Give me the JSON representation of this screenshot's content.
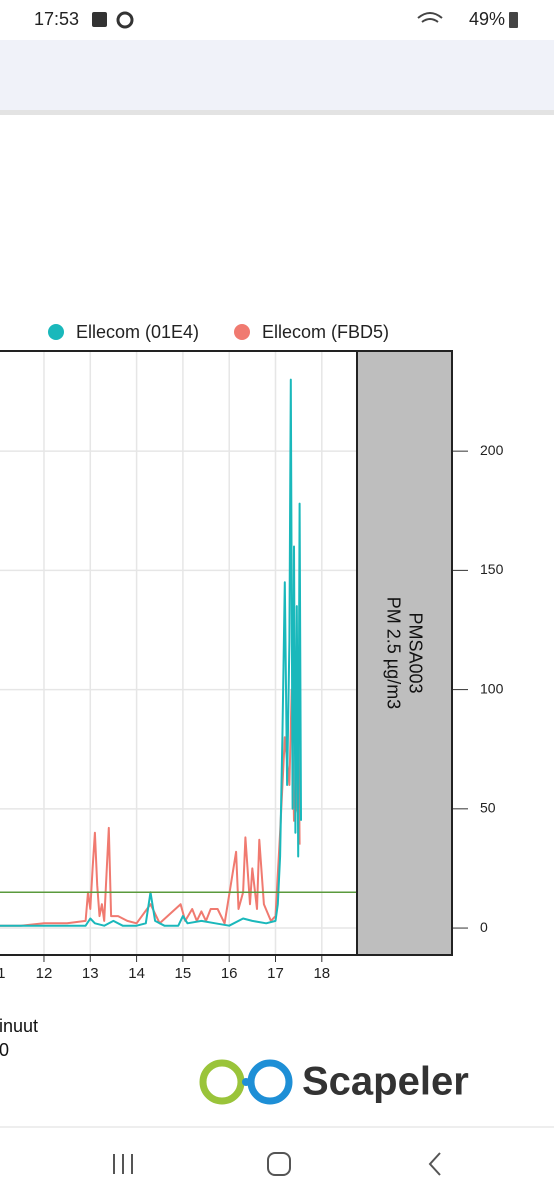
{
  "status_bar": {
    "time": "17:53",
    "battery": "49%"
  },
  "chart_data": {
    "type": "line",
    "legend": {
      "position": "top"
    },
    "strip_labels": [
      "PMSA003",
      "PM 2.5 µg/m3"
    ],
    "x_axis_fragments": [
      "inuut",
      "0"
    ],
    "xlim": [
      10.8,
      18.76
    ],
    "xticks": [
      11,
      12,
      13,
      14,
      15,
      16,
      17,
      18
    ],
    "ylim": [
      -11.3,
      242
    ],
    "yticks": [
      0,
      50,
      100,
      150,
      200
    ],
    "grid": true,
    "reference_line": {
      "value": 15,
      "color": "#5a9a3c"
    },
    "series": [
      {
        "name": "Ellecom (01E4)",
        "color": "#1ab8bb",
        "x": [
          11.0,
          11.5,
          12.0,
          12.5,
          12.9,
          13.0,
          13.1,
          13.3,
          13.5,
          13.7,
          14.0,
          14.2,
          14.3,
          14.4,
          14.6,
          14.9,
          15.0,
          15.1,
          15.4,
          15.7,
          16.0,
          16.3,
          16.5,
          16.8,
          17.0,
          17.05,
          17.1,
          17.15,
          17.2,
          17.25,
          17.3,
          17.33,
          17.37,
          17.4,
          17.43,
          17.46,
          17.49,
          17.52,
          17.55
        ],
        "values": [
          1,
          1,
          1,
          1,
          1,
          4,
          2,
          1,
          3,
          1,
          1,
          2,
          15,
          3,
          1,
          1,
          5,
          2,
          3,
          2,
          1,
          4,
          3,
          2,
          3,
          10,
          30,
          80,
          145,
          60,
          120,
          230,
          50,
          160,
          40,
          135,
          30,
          178,
          45
        ]
      },
      {
        "name": "Ellecom (FBD5)",
        "color": "#f07a70",
        "x": [
          11.0,
          11.5,
          12.0,
          12.5,
          12.9,
          12.95,
          13.0,
          13.05,
          13.1,
          13.15,
          13.2,
          13.25,
          13.3,
          13.4,
          13.45,
          13.6,
          13.8,
          14.0,
          14.3,
          14.5,
          14.95,
          15.05,
          15.2,
          15.3,
          15.4,
          15.5,
          15.6,
          15.75,
          15.9,
          16.15,
          16.2,
          16.3,
          16.35,
          16.45,
          16.5,
          16.6,
          16.65,
          16.75,
          16.9,
          17.0,
          17.1,
          17.2,
          17.3,
          17.35,
          17.4,
          17.45,
          17.5,
          17.52
        ],
        "values": [
          1,
          1,
          2,
          2,
          3,
          15,
          8,
          25,
          40,
          18,
          5,
          10,
          3,
          42,
          5,
          5,
          3,
          2,
          10,
          2,
          10,
          3,
          8,
          3,
          7,
          3,
          8,
          8,
          2,
          32,
          8,
          15,
          38,
          10,
          25,
          8,
          37,
          10,
          3,
          5,
          40,
          80,
          60,
          100,
          45,
          50,
          80,
          35
        ]
      }
    ]
  },
  "logo": {
    "text": "Scapeler"
  }
}
